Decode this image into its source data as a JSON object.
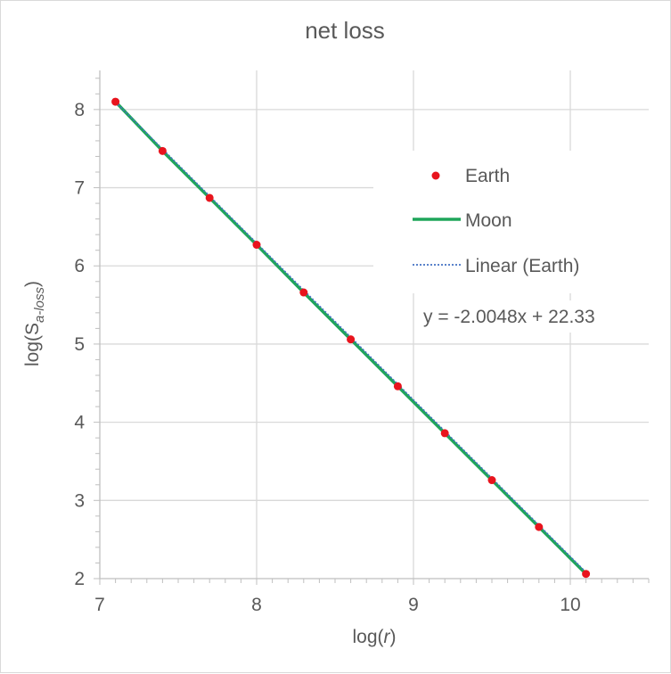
{
  "chart_data": {
    "type": "scatter",
    "title": "net loss",
    "xlabel_prefix": "log(",
    "xlabel_var": "r",
    "xlabel_suffix": ")",
    "ylabel_prefix": "log(S",
    "ylabel_sub": "a-loss",
    "ylabel_suffix": ")",
    "xlim": [
      7,
      10.5
    ],
    "ylim": [
      2,
      8.5
    ],
    "xticks": [
      7,
      8,
      9,
      10
    ],
    "yticks": [
      2,
      3,
      4,
      5,
      6,
      7,
      8
    ],
    "grid": true,
    "legend_placement": "right",
    "series": [
      {
        "name": "Earth",
        "kind": "markers",
        "color": "#e8141d",
        "x": [
          7.1,
          7.4,
          7.7,
          8.0,
          8.3,
          8.6,
          8.9,
          9.2,
          9.5,
          9.8,
          10.1
        ],
        "y": [
          8.1,
          7.47,
          6.87,
          6.27,
          5.66,
          5.06,
          4.46,
          3.86,
          3.26,
          2.66,
          2.06
        ]
      },
      {
        "name": "Moon",
        "kind": "line",
        "color": "#1fa55a",
        "x": [
          7.1,
          7.4,
          7.7,
          8.0,
          8.3,
          8.6,
          8.9,
          9.2,
          9.5,
          9.8,
          10.1
        ],
        "y": [
          8.1,
          7.47,
          6.87,
          6.27,
          5.66,
          5.06,
          4.46,
          3.86,
          3.26,
          2.66,
          2.06
        ]
      },
      {
        "name": "Linear (Earth)",
        "kind": "trendline",
        "color": "#4472c4",
        "slope": -2.0048,
        "intercept": 22.33
      }
    ],
    "trendline_equation": "y = -2.0048x + 22.33"
  }
}
